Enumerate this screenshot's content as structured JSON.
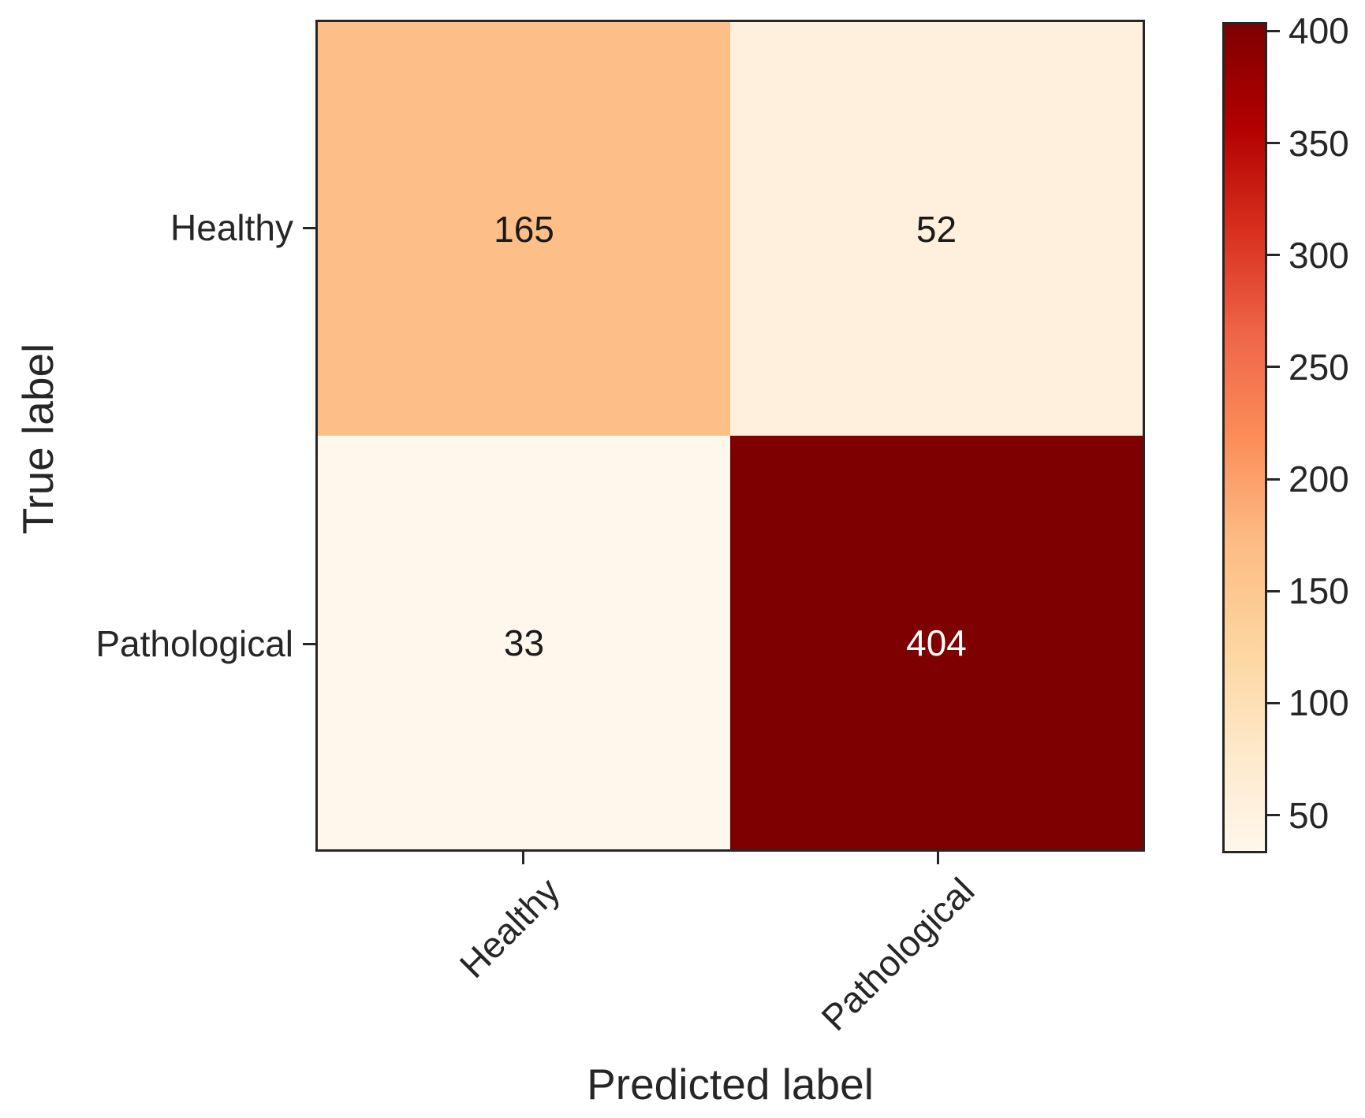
{
  "chart_data": {
    "type": "heatmap",
    "subtype": "confusion-matrix",
    "title": "",
    "xlabel": "Predicted label",
    "ylabel": "True label",
    "x_tick_labels": [
      "Healthy",
      "Pathological"
    ],
    "y_tick_labels": [
      "Healthy",
      "Pathological"
    ],
    "matrix": [
      [
        165,
        52
      ],
      [
        33,
        404
      ]
    ],
    "cell_colors": [
      [
        "#FDBF87",
        "#FEF0DC"
      ],
      [
        "#FFF7EC",
        "#7F0000"
      ]
    ],
    "cell_text_colors": [
      [
        "#1a1a1a",
        "#1a1a1a"
      ],
      [
        "#1a1a1a",
        "#ffffff"
      ]
    ],
    "colormap": "OrRd",
    "axis_color": "#262626",
    "grid": false,
    "colorbar": {
      "position": "right",
      "vmin": 33,
      "vmax": 404,
      "tick_labels": [
        "400",
        "350",
        "300",
        "250",
        "200",
        "150",
        "100",
        "50"
      ],
      "tick_values": [
        400,
        350,
        300,
        250,
        200,
        150,
        100,
        50
      ],
      "gradient_stops_bottom_to_top": [
        "#FFF7EC",
        "#FEE8C8",
        "#FDD49E",
        "#FDBB84",
        "#FC8D59",
        "#EF6548",
        "#D7301F",
        "#B30000",
        "#7F0000"
      ]
    }
  }
}
